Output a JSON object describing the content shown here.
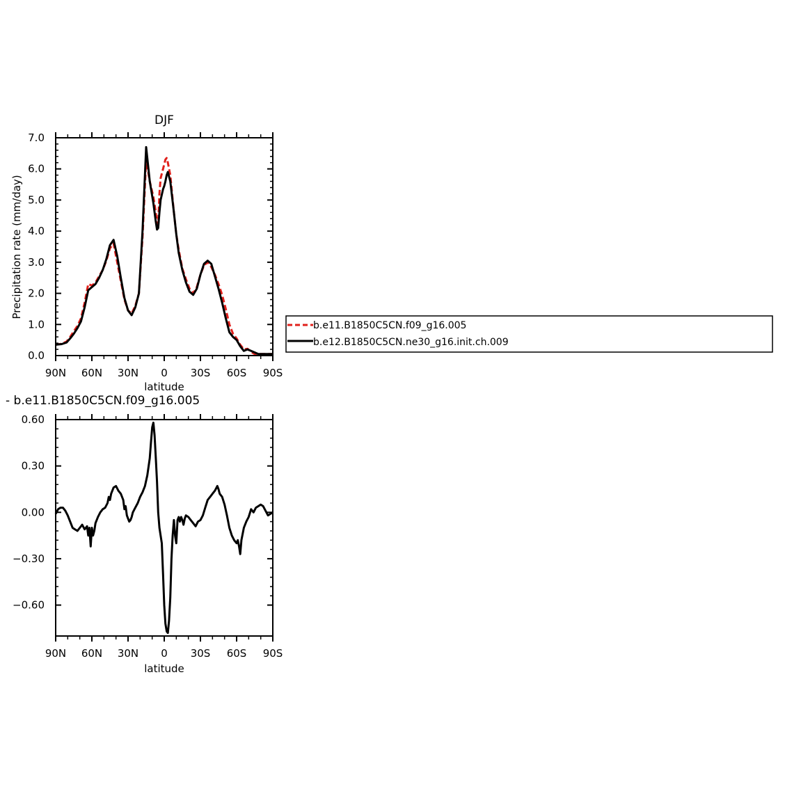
{
  "chart_data": [
    {
      "type": "line",
      "title": "DJF",
      "xlabel": "latitude",
      "ylabel": "Precipitation rate (mm/day)",
      "xlim": [
        90,
        -90
      ],
      "ylim": [
        0,
        7
      ],
      "xticks": [
        {
          "value": 90,
          "label": "90N"
        },
        {
          "value": 60,
          "label": "60N"
        },
        {
          "value": 30,
          "label": "30N"
        },
        {
          "value": 0,
          "label": "0"
        },
        {
          "value": -30,
          "label": "30S"
        },
        {
          "value": -60,
          "label": "60S"
        },
        {
          "value": -90,
          "label": "90S"
        }
      ],
      "yticks": [
        {
          "value": 0,
          "label": "0.0"
        },
        {
          "value": 1,
          "label": "1.0"
        },
        {
          "value": 2,
          "label": "2.0"
        },
        {
          "value": 3,
          "label": "3.0"
        },
        {
          "value": 4,
          "label": "4.0"
        },
        {
          "value": 5,
          "label": "5.0"
        },
        {
          "value": 6,
          "label": "6.0"
        },
        {
          "value": 7,
          "label": "7.0"
        }
      ],
      "legend_position": "right",
      "series": [
        {
          "name": "b.e11.B1850C5CN.f09_g16.005",
          "color": "#e0201b",
          "dashed": true,
          "x": [
            90,
            85,
            81,
            78,
            75,
            72,
            69,
            66,
            63,
            60,
            57,
            54,
            51,
            48,
            45,
            42,
            39,
            36,
            33,
            30,
            27,
            24,
            21,
            18,
            15,
            12,
            9,
            7,
            6,
            5,
            4,
            3,
            1,
            0,
            -1,
            -2,
            -3,
            -5,
            -8,
            -10,
            -12,
            -15,
            -18,
            -21,
            -24,
            -27,
            -30,
            -33,
            -36,
            -39,
            -42,
            -45,
            -48,
            -51,
            -54,
            -57,
            -60,
            -63,
            -66,
            -69,
            -72,
            -75,
            -78,
            -81,
            -84,
            -87,
            -90
          ],
          "y": [
            0.35,
            0.38,
            0.45,
            0.6,
            0.78,
            0.95,
            1.2,
            1.7,
            2.3,
            2.25,
            2.35,
            2.55,
            2.75,
            3.05,
            3.45,
            3.6,
            3.0,
            2.4,
            1.8,
            1.45,
            1.35,
            1.6,
            2.0,
            3.8,
            6.3,
            5.6,
            5.1,
            4.6,
            4.2,
            4.25,
            5.2,
            5.7,
            6.0,
            6.15,
            6.3,
            6.35,
            6.2,
            5.8,
            4.6,
            3.9,
            3.4,
            2.8,
            2.45,
            2.15,
            2.0,
            2.2,
            2.6,
            2.9,
            3.0,
            2.85,
            2.6,
            2.3,
            1.95,
            1.5,
            1.0,
            0.7,
            0.55,
            0.35,
            0.2,
            0.22,
            0.12,
            0.05,
            0.05,
            0.05,
            0.05,
            0.05,
            0.05
          ]
        },
        {
          "name": "b.e12.B1850C5CN.ne30_g16.init.ch.009",
          "color": "#000000",
          "dashed": false,
          "x": [
            90,
            85,
            81,
            78,
            75,
            72,
            69,
            66,
            63,
            60,
            57,
            54,
            51,
            48,
            45,
            42,
            39,
            36,
            33,
            30,
            27,
            24,
            21,
            18,
            15,
            12,
            9,
            7,
            6,
            5,
            4,
            3,
            1,
            0,
            -1,
            -2,
            -3,
            -5,
            -8,
            -10,
            -12,
            -15,
            -18,
            -21,
            -24,
            -27,
            -30,
            -33,
            -36,
            -39,
            -42,
            -45,
            -48,
            -51,
            -54,
            -57,
            -60,
            -63,
            -66,
            -69,
            -72,
            -75,
            -78,
            -81,
            -84,
            -87,
            -90
          ],
          "y": [
            0.35,
            0.37,
            0.42,
            0.55,
            0.7,
            0.88,
            1.1,
            1.55,
            2.1,
            2.2,
            2.3,
            2.5,
            2.75,
            3.1,
            3.55,
            3.72,
            3.2,
            2.5,
            1.85,
            1.45,
            1.3,
            1.55,
            2.0,
            4.0,
            6.7,
            5.6,
            4.9,
            4.3,
            4.05,
            4.1,
            4.6,
            5.0,
            5.35,
            5.45,
            5.6,
            5.8,
            5.9,
            5.6,
            4.6,
            3.9,
            3.3,
            2.75,
            2.35,
            2.05,
            1.95,
            2.15,
            2.6,
            2.95,
            3.05,
            2.95,
            2.55,
            2.15,
            1.7,
            1.2,
            0.75,
            0.6,
            0.5,
            0.3,
            0.15,
            0.2,
            0.15,
            0.1,
            0.05,
            0.05,
            0.05,
            0.05,
            0.05
          ]
        }
      ]
    },
    {
      "type": "line",
      "title": "- b.e11.B1850C5CN.f09_g16.005",
      "xlabel": "latitude",
      "ylabel": "",
      "xlim": [
        90,
        -90
      ],
      "ylim": [
        -0.8,
        0.6
      ],
      "xticks": [
        {
          "value": 90,
          "label": "90N"
        },
        {
          "value": 60,
          "label": "60N"
        },
        {
          "value": 30,
          "label": "30N"
        },
        {
          "value": 0,
          "label": "0"
        },
        {
          "value": -30,
          "label": "30S"
        },
        {
          "value": -60,
          "label": "60S"
        },
        {
          "value": -90,
          "label": "90S"
        }
      ],
      "yticks": [
        {
          "value": 0.6,
          "label": "0.60"
        },
        {
          "value": 0.3,
          "label": "0.30"
        },
        {
          "value": 0.0,
          "label": "0.00"
        },
        {
          "value": -0.3,
          "label": "−0.30"
        },
        {
          "value": -0.6,
          "label": "−0.60"
        }
      ],
      "series": [
        {
          "color": "#000000",
          "dashed": false,
          "x": [
            90,
            88,
            86,
            84,
            82,
            80,
            78,
            76,
            74,
            72,
            70,
            68,
            66,
            64,
            63,
            62,
            61,
            60,
            59,
            58,
            57,
            55,
            53,
            51,
            49,
            47,
            46,
            45,
            44,
            42,
            40,
            38,
            36,
            34,
            33,
            32,
            31,
            30,
            29,
            28,
            27,
            26,
            24,
            22,
            20,
            18,
            16,
            14,
            12,
            11,
            10,
            9,
            8,
            7,
            6,
            5,
            4,
            3,
            2,
            1,
            0,
            -1,
            -2,
            -3,
            -4,
            -5,
            -6,
            -7,
            -8,
            -9,
            -10,
            -11,
            -12,
            -13,
            -14,
            -15,
            -16,
            -17,
            -18,
            -20,
            -22,
            -24,
            -26,
            -28,
            -30,
            -32,
            -34,
            -36,
            -38,
            -40,
            -42,
            -44,
            -45,
            -46,
            -48,
            -50,
            -52,
            -54,
            -56,
            -58,
            -60,
            -61,
            -62,
            -63,
            -64,
            -66,
            -68,
            -70,
            -72,
            -74,
            -76,
            -78,
            -80,
            -82,
            -84,
            -86,
            -88,
            -90
          ],
          "y": [
            -0.01,
            0.02,
            0.03,
            0.03,
            0.01,
            -0.02,
            -0.06,
            -0.1,
            -0.11,
            -0.12,
            -0.1,
            -0.08,
            -0.11,
            -0.09,
            -0.15,
            -0.1,
            -0.22,
            -0.1,
            -0.15,
            -0.12,
            -0.07,
            -0.03,
            0.0,
            0.02,
            0.03,
            0.06,
            0.1,
            0.08,
            0.12,
            0.16,
            0.17,
            0.14,
            0.12,
            0.08,
            0.02,
            0.04,
            -0.02,
            -0.04,
            -0.06,
            -0.05,
            -0.03,
            0.0,
            0.03,
            0.06,
            0.1,
            0.13,
            0.17,
            0.24,
            0.35,
            0.45,
            0.55,
            0.58,
            0.5,
            0.35,
            0.2,
            0.0,
            -0.1,
            -0.15,
            -0.2,
            -0.4,
            -0.6,
            -0.72,
            -0.77,
            -0.78,
            -0.7,
            -0.55,
            -0.3,
            -0.15,
            -0.05,
            -0.15,
            -0.2,
            -0.05,
            -0.03,
            -0.06,
            -0.03,
            -0.05,
            -0.08,
            -0.04,
            -0.02,
            -0.03,
            -0.05,
            -0.07,
            -0.09,
            -0.06,
            -0.05,
            -0.02,
            0.03,
            0.08,
            0.1,
            0.12,
            0.14,
            0.17,
            0.15,
            0.12,
            0.1,
            0.05,
            -0.02,
            -0.1,
            -0.15,
            -0.18,
            -0.2,
            -0.18,
            -0.22,
            -0.27,
            -0.18,
            -0.1,
            -0.06,
            -0.03,
            0.02,
            0.0,
            0.03,
            0.04,
            0.05,
            0.04,
            0.01,
            -0.02,
            -0.01,
            0.0
          ]
        }
      ]
    }
  ]
}
